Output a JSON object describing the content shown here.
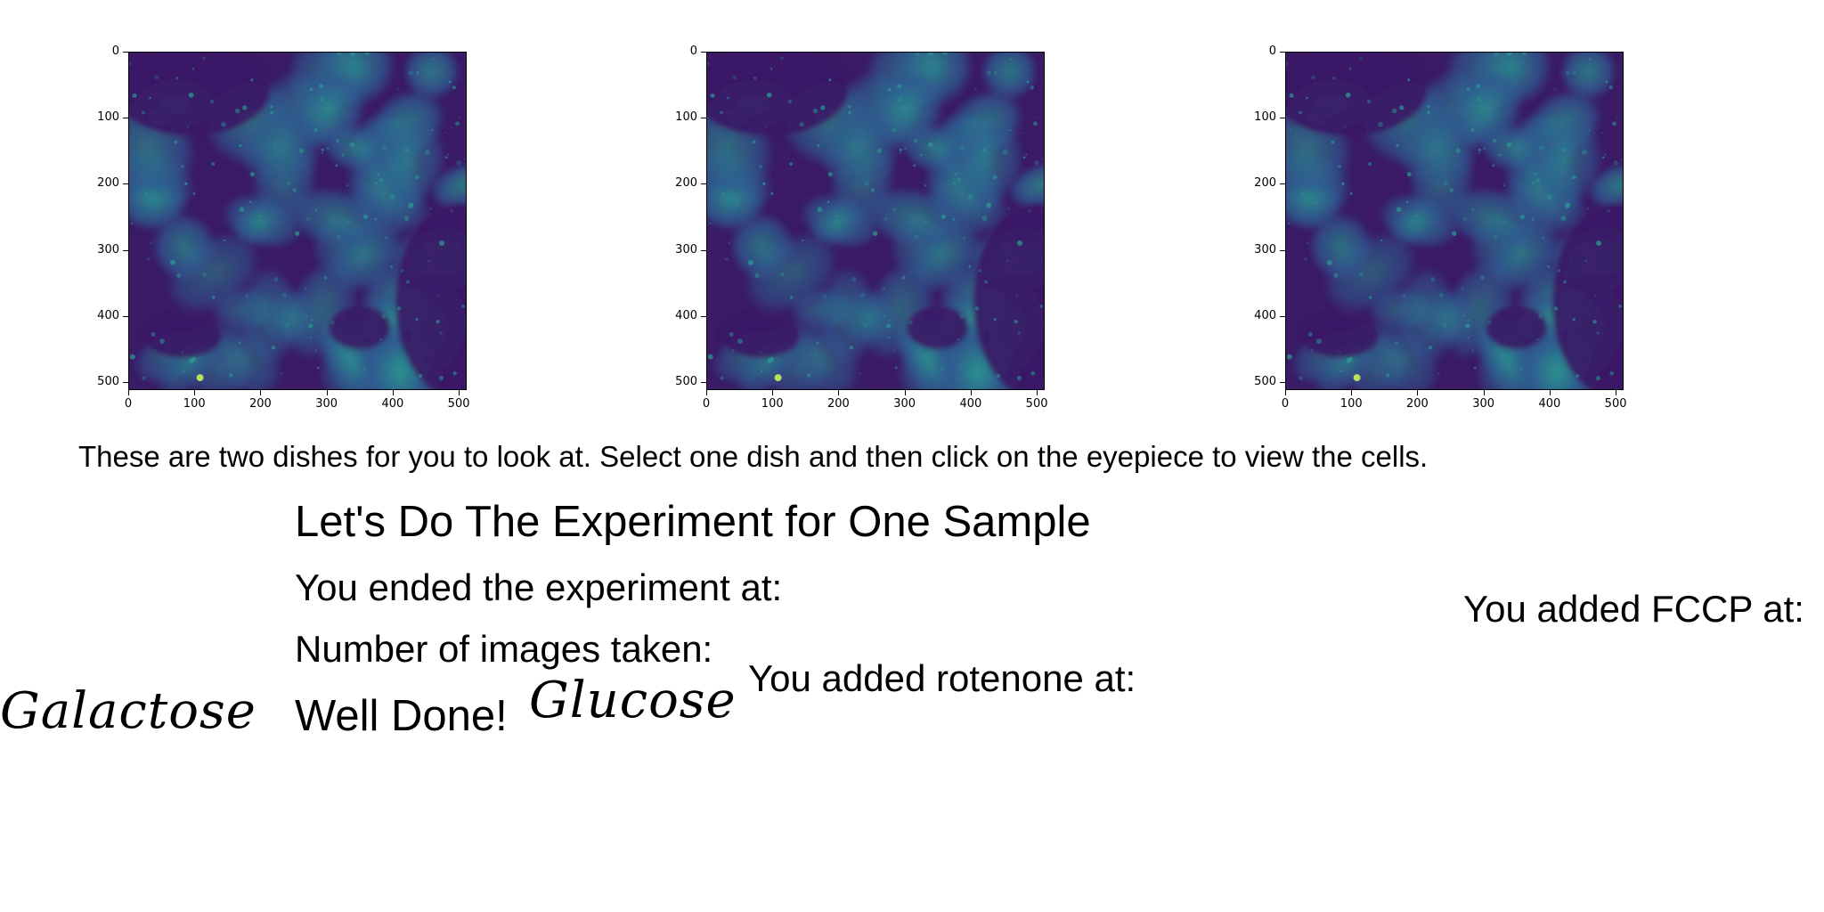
{
  "images": [
    {
      "x_ticks": [
        "0",
        "100",
        "200",
        "300",
        "400",
        "500"
      ],
      "y_ticks": [
        "0",
        "100",
        "200",
        "300",
        "400",
        "500"
      ]
    },
    {
      "x_ticks": [
        "0",
        "100",
        "200",
        "300",
        "400",
        "500"
      ],
      "y_ticks": [
        "0",
        "100",
        "200",
        "300",
        "400",
        "500"
      ]
    },
    {
      "x_ticks": [
        "0",
        "100",
        "200",
        "300",
        "400",
        "500"
      ],
      "y_ticks": [
        "0",
        "100",
        "200",
        "300",
        "400",
        "500"
      ]
    }
  ],
  "instructions": "These are two dishes for you to look at. Select one dish and then click on the eyepiece to view the cells.",
  "heading": "Let's Do The Experiment for One Sample",
  "ended_label": "You ended the experiment at:",
  "images_taken_label": "Number of images taken:",
  "well_done": "Well Done!",
  "rotenone_label": "You added rotenone at:",
  "fccp_label": "You added FCCP at:",
  "dishes": {
    "galactose": "Galactose",
    "glucose": "Glucose"
  },
  "colors": {
    "background_dark": "#3b1a66",
    "cell_mid": "#2f5c91",
    "cell_bright": "#2a9a8f",
    "speck": "#b8e05a"
  }
}
